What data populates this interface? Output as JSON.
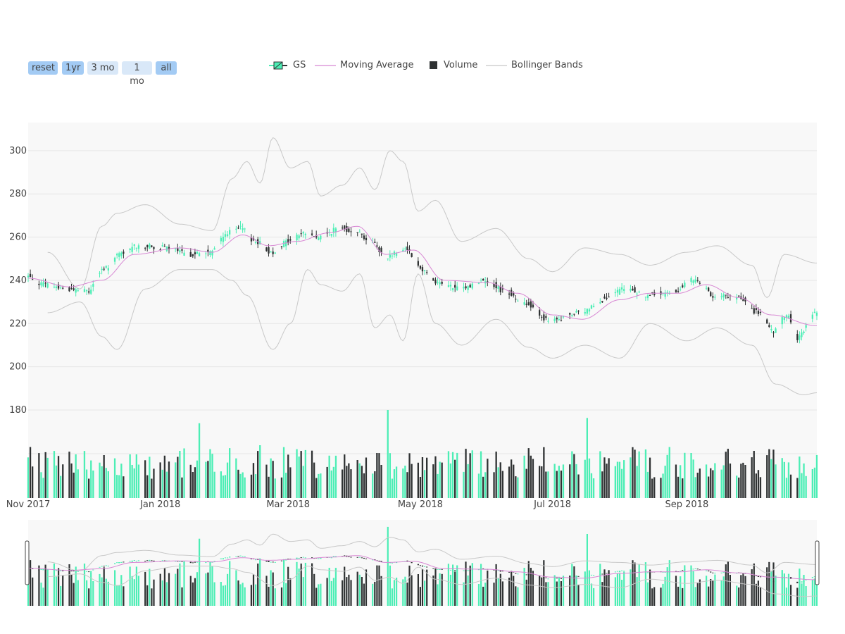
{
  "range_selector": {
    "buttons": [
      {
        "label": "reset",
        "active": true
      },
      {
        "label": "1yr",
        "active": true
      },
      {
        "label": "3 mo",
        "active": false
      },
      {
        "label": "1 mo",
        "active": false
      },
      {
        "label": "all",
        "active": true
      }
    ]
  },
  "legend": {
    "items": [
      {
        "label": "GS",
        "symbol": "candlestick-icon"
      },
      {
        "label": "Moving Average",
        "symbol": "line-icon"
      },
      {
        "label": "Volume",
        "symbol": "square-icon"
      },
      {
        "label": "Bollinger Bands",
        "symbol": "line-icon"
      }
    ]
  },
  "colors": {
    "increasing": "#4ceeb5",
    "decreasing": "#2f3233",
    "moving_average": "#d787d3",
    "bollinger": "#c8c8c8",
    "plot_background": "#f8f8f8",
    "grid": "#e6e6e6",
    "button_active": "#a3cbf4",
    "button_inactive": "#d9e8f8"
  },
  "chart_data": {
    "type": "candlestick",
    "title": "",
    "symbol": "GS",
    "x_axis": {
      "type": "date",
      "range": [
        "2017-11-01",
        "2018-10-31"
      ],
      "tick_labels": [
        "Nov 2017",
        "Jan 2018",
        "Mar 2018",
        "May 2018",
        "Jul 2018",
        "Sep 2018"
      ],
      "tick_dates": [
        "2017-11-01",
        "2018-01-01",
        "2018-03-01",
        "2018-05-01",
        "2018-07-01",
        "2018-09-01"
      ]
    },
    "price_axis": {
      "range": [
        180,
        313
      ],
      "tick_values": [
        180,
        200,
        220,
        240,
        260,
        280,
        300
      ]
    },
    "volume_axis": {
      "range": [
        0,
        10
      ],
      "tick_labels": []
    },
    "grid": true,
    "legend_position": "top",
    "rangeslider": true,
    "price_anchors": [
      [
        "2017-11-01",
        242
      ],
      [
        "2017-11-10",
        238
      ],
      [
        "2017-11-20",
        236
      ],
      [
        "2017-11-30",
        235
      ],
      [
        "2017-12-05",
        244
      ],
      [
        "2017-12-15",
        252
      ],
      [
        "2017-12-22",
        256
      ],
      [
        "2018-01-05",
        255
      ],
      [
        "2018-01-15",
        252
      ],
      [
        "2018-01-25",
        253
      ],
      [
        "2018-02-02",
        262
      ],
      [
        "2018-02-08",
        264
      ],
      [
        "2018-02-15",
        258
      ],
      [
        "2018-02-22",
        253
      ],
      [
        "2018-03-02",
        258
      ],
      [
        "2018-03-09",
        262
      ],
      [
        "2018-03-16",
        260
      ],
      [
        "2018-03-26",
        264
      ],
      [
        "2018-04-02",
        263
      ],
      [
        "2018-04-09",
        258
      ],
      [
        "2018-04-16",
        251
      ],
      [
        "2018-04-25",
        255
      ],
      [
        "2018-05-03",
        245
      ],
      [
        "2018-05-10",
        239
      ],
      [
        "2018-05-20",
        236
      ],
      [
        "2018-06-01",
        240
      ],
      [
        "2018-06-10",
        235
      ],
      [
        "2018-06-20",
        229
      ],
      [
        "2018-07-01",
        221
      ],
      [
        "2018-07-15",
        225
      ],
      [
        "2018-07-25",
        231
      ],
      [
        "2018-08-05",
        236
      ],
      [
        "2018-08-15",
        233
      ],
      [
        "2018-08-25",
        234
      ],
      [
        "2018-09-05",
        240
      ],
      [
        "2018-09-15",
        233
      ],
      [
        "2018-09-25",
        232
      ],
      [
        "2018-10-05",
        225
      ],
      [
        "2018-10-12",
        216
      ],
      [
        "2018-10-18",
        224
      ],
      [
        "2018-10-23",
        213
      ],
      [
        "2018-10-31",
        225
      ]
    ],
    "ma_anchors": [
      [
        "2017-11-01",
        241
      ],
      [
        "2017-11-20",
        237
      ],
      [
        "2017-12-05",
        240
      ],
      [
        "2017-12-20",
        252
      ],
      [
        "2018-01-10",
        255
      ],
      [
        "2018-01-25",
        253
      ],
      [
        "2018-02-08",
        261
      ],
      [
        "2018-02-20",
        256
      ],
      [
        "2018-03-05",
        258
      ],
      [
        "2018-03-20",
        262
      ],
      [
        "2018-04-02",
        265
      ],
      [
        "2018-04-15",
        252
      ],
      [
        "2018-04-28",
        254
      ],
      [
        "2018-05-12",
        240
      ],
      [
        "2018-06-01",
        239
      ],
      [
        "2018-06-15",
        234
      ],
      [
        "2018-07-01",
        224
      ],
      [
        "2018-07-15",
        222
      ],
      [
        "2018-08-01",
        231
      ],
      [
        "2018-08-15",
        234
      ],
      [
        "2018-08-28",
        234
      ],
      [
        "2018-09-10",
        238
      ],
      [
        "2018-09-25",
        232
      ],
      [
        "2018-10-10",
        224
      ],
      [
        "2018-10-31",
        219
      ]
    ],
    "bollinger_upper_anchors": [
      [
        "2017-11-10",
        253
      ],
      [
        "2017-11-25",
        236
      ],
      [
        "2017-12-05",
        265
      ],
      [
        "2017-12-12",
        271
      ],
      [
        "2017-12-25",
        275
      ],
      [
        "2018-01-10",
        266
      ],
      [
        "2018-01-25",
        263
      ],
      [
        "2018-02-03",
        287
      ],
      [
        "2018-02-10",
        295
      ],
      [
        "2018-02-16",
        285
      ],
      [
        "2018-02-22",
        306
      ],
      [
        "2018-03-02",
        292
      ],
      [
        "2018-03-10",
        295
      ],
      [
        "2018-03-16",
        279
      ],
      [
        "2018-03-26",
        284
      ],
      [
        "2018-04-03",
        292
      ],
      [
        "2018-04-10",
        282
      ],
      [
        "2018-04-17",
        300
      ],
      [
        "2018-04-23",
        295
      ],
      [
        "2018-04-30",
        272
      ],
      [
        "2018-05-08",
        277
      ],
      [
        "2018-05-20",
        258
      ],
      [
        "2018-06-05",
        264
      ],
      [
        "2018-06-20",
        250
      ],
      [
        "2018-07-01",
        244
      ],
      [
        "2018-07-16",
        255
      ],
      [
        "2018-08-01",
        252
      ],
      [
        "2018-08-15",
        247
      ],
      [
        "2018-09-01",
        253
      ],
      [
        "2018-09-15",
        256
      ],
      [
        "2018-10-01",
        247
      ],
      [
        "2018-10-08",
        232
      ],
      [
        "2018-10-16",
        252
      ],
      [
        "2018-10-31",
        248
      ]
    ],
    "bollinger_lower_anchors": [
      [
        "2017-11-10",
        225
      ],
      [
        "2017-11-25",
        230
      ],
      [
        "2017-12-05",
        214
      ],
      [
        "2017-12-12",
        208
      ],
      [
        "2017-12-25",
        236
      ],
      [
        "2018-01-10",
        245
      ],
      [
        "2018-01-25",
        245
      ],
      [
        "2018-02-03",
        240
      ],
      [
        "2018-02-10",
        233
      ],
      [
        "2018-02-22",
        208
      ],
      [
        "2018-03-02",
        220
      ],
      [
        "2018-03-10",
        245
      ],
      [
        "2018-03-16",
        238
      ],
      [
        "2018-03-26",
        235
      ],
      [
        "2018-04-03",
        243
      ],
      [
        "2018-04-10",
        218
      ],
      [
        "2018-04-17",
        224
      ],
      [
        "2018-04-23",
        212
      ],
      [
        "2018-04-30",
        243
      ],
      [
        "2018-05-08",
        220
      ],
      [
        "2018-05-20",
        210
      ],
      [
        "2018-06-05",
        222
      ],
      [
        "2018-06-20",
        209
      ],
      [
        "2018-07-01",
        204
      ],
      [
        "2018-07-16",
        210
      ],
      [
        "2018-08-01",
        204
      ],
      [
        "2018-08-15",
        220
      ],
      [
        "2018-09-01",
        212
      ],
      [
        "2018-09-15",
        218
      ],
      [
        "2018-10-01",
        210
      ],
      [
        "2018-10-12",
        192
      ],
      [
        "2018-10-25",
        187
      ],
      [
        "2018-10-31",
        188
      ]
    ],
    "volume_spikes": [
      [
        "2018-01-19",
        8.5
      ],
      [
        "2018-02-16",
        6.0
      ],
      [
        "2018-04-16",
        10.0
      ],
      [
        "2018-07-17",
        9.1
      ]
    ]
  }
}
